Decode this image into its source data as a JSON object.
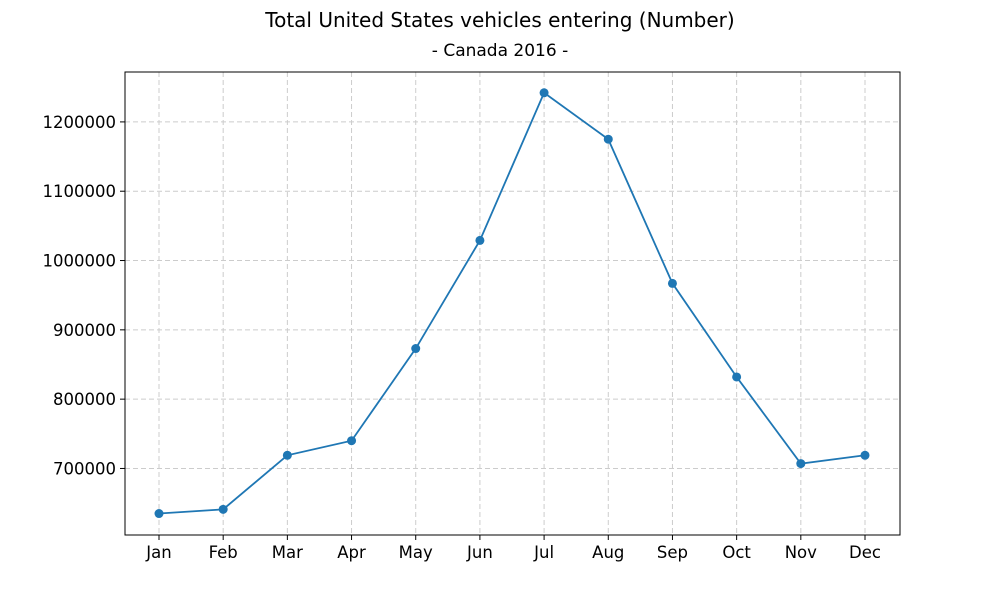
{
  "chart_data": {
    "type": "line",
    "title": "Total United States vehicles entering (Number)",
    "subtitle": "- Canada 2016 -",
    "xlabel": "",
    "ylabel": "",
    "categories": [
      "Jan",
      "Feb",
      "Mar",
      "Apr",
      "May",
      "Jun",
      "Jul",
      "Aug",
      "Sep",
      "Oct",
      "Nov",
      "Dec"
    ],
    "series": [
      {
        "values": [
          635000,
          641000,
          719000,
          740000,
          873000,
          1029000,
          1242000,
          1175000,
          967000,
          832000,
          707000,
          719000
        ]
      }
    ],
    "yticks": [
      700000,
      800000,
      900000,
      1000000,
      1100000,
      1200000
    ],
    "ytick_labels": [
      "700000",
      "800000",
      "900000",
      "1000000",
      "1100000",
      "1200000"
    ],
    "ylim": [
      604000,
      1272000
    ],
    "grid": true,
    "line_color": "#1f77b4",
    "grid_color": "#cccccc"
  }
}
